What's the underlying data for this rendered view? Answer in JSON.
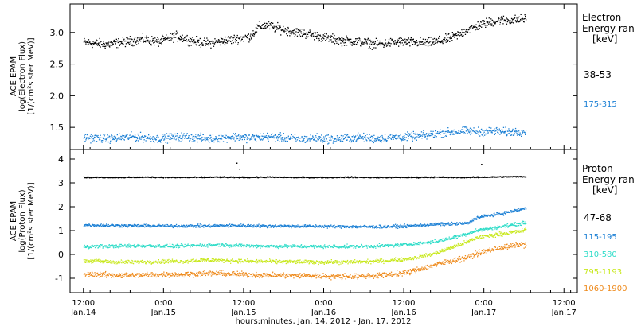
{
  "chart_data": [
    {
      "type": "scatter",
      "ylabel_lines": [
        "ACE EPAM",
        "log(Electron Flux)",
        "[1/(cm²s ster MeV)]"
      ],
      "legend_title_lines": [
        "Electron",
        "Energy ran",
        "[keV]"
      ],
      "ylim": [
        1.15,
        3.45
      ],
      "yticks": [
        1.5,
        2.0,
        2.5,
        3.0
      ],
      "series": [
        {
          "name": "38-53",
          "color": "#000000",
          "x": [
            0,
            6,
            12,
            18,
            24,
            30,
            36,
            42,
            48,
            54,
            60,
            66,
            72,
            78,
            84,
            90,
            96,
            102,
            108,
            114,
            120,
            126,
            132,
            138,
            144,
            150,
            156,
            162,
            168,
            174,
            180,
            186,
            192,
            198,
            204,
            210,
            216,
            222,
            228,
            234,
            240,
            246,
            252,
            258,
            264,
            270,
            276,
            282,
            288,
            294,
            300,
            306,
            312,
            318
          ],
          "y": [
            2.85,
            2.84,
            2.83,
            2.82,
            2.84,
            2.86,
            2.88,
            2.9,
            2.88,
            2.86,
            2.9,
            2.95,
            2.92,
            2.88,
            2.85,
            2.84,
            2.86,
            2.88,
            2.9,
            2.92,
            2.95,
            3.1,
            3.12,
            3.08,
            3.05,
            3.02,
            3.0,
            2.98,
            2.95,
            2.92,
            2.9,
            2.88,
            2.87,
            2.86,
            2.84,
            2.82,
            2.83,
            2.85,
            2.86,
            2.85,
            2.85,
            2.84,
            2.86,
            2.88,
            2.92,
            2.98,
            3.05,
            3.1,
            3.15,
            3.18,
            3.2,
            3.2,
            3.21,
            3.22
          ]
        },
        {
          "name": "175-315",
          "color": "#1a7fd4",
          "x": [
            0,
            6,
            12,
            18,
            24,
            30,
            36,
            42,
            48,
            54,
            60,
            66,
            72,
            78,
            84,
            90,
            96,
            102,
            108,
            114,
            120,
            126,
            132,
            138,
            144,
            150,
            156,
            162,
            168,
            174,
            180,
            186,
            192,
            198,
            204,
            210,
            216,
            222,
            228,
            234,
            240,
            246,
            252,
            258,
            264,
            270,
            276,
            282,
            288,
            294,
            300,
            306,
            312,
            318
          ],
          "y": [
            1.35,
            1.34,
            1.33,
            1.33,
            1.34,
            1.35,
            1.36,
            1.35,
            1.34,
            1.33,
            1.34,
            1.35,
            1.36,
            1.35,
            1.34,
            1.33,
            1.34,
            1.35,
            1.36,
            1.35,
            1.34,
            1.35,
            1.36,
            1.35,
            1.34,
            1.33,
            1.32,
            1.33,
            1.34,
            1.33,
            1.32,
            1.33,
            1.34,
            1.35,
            1.34,
            1.33,
            1.34,
            1.35,
            1.35,
            1.36,
            1.37,
            1.38,
            1.4,
            1.42,
            1.43,
            1.44,
            1.45,
            1.44,
            1.44,
            1.45,
            1.44,
            1.43,
            1.44,
            1.45
          ]
        }
      ]
    },
    {
      "type": "scatter",
      "ylabel_lines": [
        "ACE EPAM",
        "log(Proton Flux)",
        "[1/(cm²s ster MeV)]"
      ],
      "legend_title_lines": [
        "Proton",
        "Energy ran",
        "[keV]"
      ],
      "ylim": [
        -1.6,
        4.4
      ],
      "yticks": [
        -1,
        0,
        1,
        2,
        3,
        4
      ],
      "series": [
        {
          "name": "47-68",
          "color": "#000000",
          "x": [
            0,
            12,
            24,
            36,
            48,
            60,
            72,
            84,
            96,
            108,
            120,
            132,
            144,
            156,
            168,
            180,
            192,
            204,
            216,
            228,
            240,
            252,
            264,
            276,
            288,
            300,
            312,
            318
          ],
          "y": [
            3.25,
            3.25,
            3.25,
            3.25,
            3.26,
            3.25,
            3.25,
            3.25,
            3.26,
            3.25,
            3.25,
            3.26,
            3.25,
            3.25,
            3.25,
            3.25,
            3.26,
            3.25,
            3.25,
            3.25,
            3.25,
            3.26,
            3.25,
            3.25,
            3.26,
            3.27,
            3.28,
            3.28
          ]
        },
        {
          "name": "115-195",
          "color": "#1a7fd4",
          "x": [
            0,
            12,
            24,
            36,
            48,
            60,
            72,
            84,
            96,
            108,
            120,
            132,
            144,
            156,
            168,
            180,
            192,
            204,
            216,
            228,
            240,
            252,
            264,
            276,
            282,
            288,
            300,
            312,
            318
          ],
          "y": [
            1.25,
            1.24,
            1.23,
            1.22,
            1.22,
            1.21,
            1.22,
            1.21,
            1.22,
            1.23,
            1.22,
            1.21,
            1.21,
            1.2,
            1.2,
            1.19,
            1.19,
            1.18,
            1.18,
            1.2,
            1.23,
            1.28,
            1.3,
            1.32,
            1.55,
            1.62,
            1.72,
            1.88,
            1.95
          ]
        },
        {
          "name": "310-580",
          "color": "#2fdcc8",
          "x": [
            0,
            12,
            24,
            36,
            48,
            60,
            72,
            84,
            96,
            108,
            120,
            132,
            144,
            156,
            168,
            180,
            192,
            204,
            216,
            228,
            240,
            252,
            264,
            276,
            282,
            288,
            300,
            312,
            318
          ],
          "y": [
            0.35,
            0.36,
            0.37,
            0.38,
            0.38,
            0.37,
            0.37,
            0.4,
            0.42,
            0.4,
            0.38,
            0.37,
            0.36,
            0.36,
            0.35,
            0.35,
            0.35,
            0.36,
            0.38,
            0.42,
            0.48,
            0.55,
            0.7,
            0.9,
            1.02,
            1.08,
            1.18,
            1.3,
            1.35
          ]
        },
        {
          "name": "795-1193",
          "color": "#c8e81c",
          "x": [
            0,
            12,
            24,
            36,
            48,
            60,
            72,
            84,
            96,
            108,
            120,
            132,
            144,
            156,
            168,
            180,
            192,
            204,
            216,
            228,
            240,
            252,
            264,
            276,
            282,
            288,
            300,
            312,
            318
          ],
          "y": [
            -0.25,
            -0.27,
            -0.3,
            -0.3,
            -0.28,
            -0.27,
            -0.27,
            -0.22,
            -0.22,
            -0.25,
            -0.27,
            -0.28,
            -0.28,
            -0.29,
            -0.3,
            -0.3,
            -0.3,
            -0.28,
            -0.25,
            -0.2,
            -0.1,
            0.05,
            0.3,
            0.55,
            0.7,
            0.78,
            0.88,
            0.98,
            1.05
          ]
        },
        {
          "name": "1060-1900",
          "color": "#ee8a1c",
          "x": [
            0,
            12,
            24,
            36,
            48,
            60,
            72,
            84,
            96,
            108,
            120,
            132,
            144,
            156,
            168,
            180,
            192,
            204,
            216,
            228,
            240,
            252,
            264,
            276,
            282,
            288,
            300,
            312,
            318
          ],
          "y": [
            -0.8,
            -0.82,
            -0.85,
            -0.85,
            -0.83,
            -0.82,
            -0.82,
            -0.78,
            -0.77,
            -0.8,
            -0.83,
            -0.85,
            -0.86,
            -0.87,
            -0.88,
            -0.9,
            -0.9,
            -0.88,
            -0.85,
            -0.78,
            -0.62,
            -0.42,
            -0.25,
            -0.1,
            0.05,
            0.15,
            0.3,
            0.42,
            0.45
          ]
        }
      ],
      "spikes": [
        {
          "series": 0,
          "x": 110,
          "y": 3.85
        },
        {
          "series": 0,
          "x": 112,
          "y": 3.6
        },
        {
          "series": 0,
          "x": 286,
          "y": 3.8
        }
      ]
    }
  ],
  "xaxis": {
    "ticks": [
      {
        "x": 0,
        "time": "12:00",
        "day": "Jan.14"
      },
      {
        "x": 12,
        "time": "0:00",
        "day": "Jan.15"
      },
      {
        "x": 24,
        "time": "12:00",
        "day": "Jan.15"
      },
      {
        "x": 36,
        "time": "0:00",
        "day": "Jan.16"
      },
      {
        "x": 48,
        "time": "12:00",
        "day": "Jan.16"
      },
      {
        "x": 60,
        "time": "0:00",
        "day": "Jan.17"
      },
      {
        "x": 72,
        "time": "12:00",
        "day": "Jan.17"
      }
    ],
    "xlim_hours": [
      -2,
      74
    ],
    "xlabel": "hours:minutes, Jan. 14, 2012 - Jan. 17, 2012"
  }
}
